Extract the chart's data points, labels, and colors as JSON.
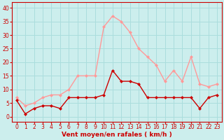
{
  "x": [
    0,
    1,
    2,
    3,
    4,
    5,
    6,
    7,
    8,
    9,
    10,
    11,
    12,
    13,
    14,
    15,
    16,
    17,
    18,
    19,
    20,
    21,
    22,
    23
  ],
  "rafales": [
    7,
    4,
    5,
    7,
    8,
    8,
    10,
    15,
    15,
    15,
    33,
    37,
    35,
    31,
    25,
    22,
    19,
    13,
    17,
    13,
    22,
    12,
    11,
    12
  ],
  "moyen": [
    6,
    1,
    3,
    4,
    4,
    3,
    7,
    7,
    7,
    7,
    8,
    17,
    13,
    13,
    12,
    7,
    7,
    7,
    7,
    7,
    7,
    3,
    7,
    8
  ],
  "color_dark": "#cc0000",
  "color_light": "#ff9999",
  "bg_color": "#cceeed",
  "grid_color": "#aadddd",
  "xlabel": "Vent moyen/en rafales ( km/h )",
  "xlabel_color": "#cc0000",
  "ylim": [
    -2,
    42
  ],
  "yticks": [
    0,
    5,
    10,
    15,
    20,
    25,
    30,
    35,
    40
  ],
  "markersize": 2.5,
  "linewidth": 1.0
}
